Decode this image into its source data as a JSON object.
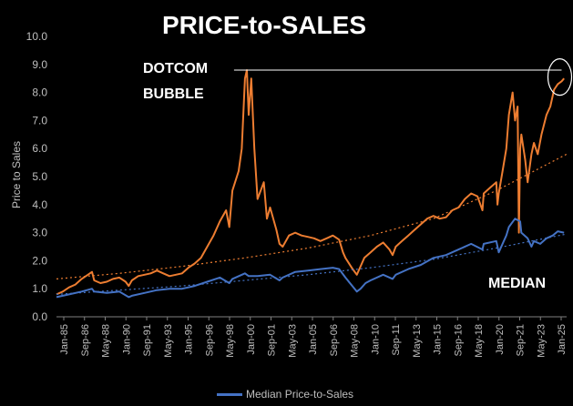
{
  "chart_data": {
    "type": "line",
    "title": "PRICE-to-SALES",
    "ylabel": "Price to Sales",
    "xlabel": "",
    "ylim": [
      0,
      10
    ],
    "yticks": [
      "0.0",
      "1.0",
      "2.0",
      "3.0",
      "4.0",
      "5.0",
      "6.0",
      "7.0",
      "8.0",
      "9.0",
      "10.0"
    ],
    "xticks": [
      "Jan-85",
      "Sep-86",
      "May-88",
      "Jan-90",
      "Sep-91",
      "May-93",
      "Jan-95",
      "Sep-96",
      "May-98",
      "Jan-00",
      "Sep-01",
      "May-03",
      "Jan-05",
      "Sep-06",
      "May-08",
      "Jan-10",
      "Sep-11",
      "May-13",
      "Jan-15",
      "Sep-16",
      "May-18",
      "Jan-20",
      "Sep-21",
      "May-23",
      "Jan-25"
    ],
    "xrange": [
      1985.0,
      2025.6
    ],
    "legend": "bottom",
    "grid": false,
    "annotations": [
      {
        "text_lines": [
          "DOTCOM",
          "BUBBLE"
        ]
      },
      {
        "text": "MEDIAN"
      }
    ],
    "series": [
      {
        "name": "",
        "color": "#ed7d31",
        "x": [
          1985.0,
          1985.5,
          1986.0,
          1986.5,
          1987.0,
          1987.5,
          1987.83,
          1988.0,
          1988.5,
          1989.0,
          1989.5,
          1990.0,
          1990.5,
          1990.75,
          1991.0,
          1991.5,
          1992.0,
          1992.5,
          1993.0,
          1993.5,
          1994.0,
          1994.5,
          1995.0,
          1995.5,
          1996.0,
          1996.5,
          1997.0,
          1997.5,
          1998.0,
          1998.5,
          1998.75,
          1999.0,
          1999.5,
          1999.75,
          2000.0,
          2000.15,
          2000.3,
          2000.5,
          2000.75,
          2001.0,
          2001.5,
          2001.75,
          2002.0,
          2002.5,
          2002.75,
          2003.0,
          2003.5,
          2004.0,
          2004.5,
          2005.0,
          2005.5,
          2006.0,
          2006.5,
          2007.0,
          2007.5,
          2007.8,
          2008.0,
          2008.5,
          2008.9,
          2009.2,
          2009.5,
          2010.0,
          2010.5,
          2011.0,
          2011.5,
          2011.75,
          2012.0,
          2012.5,
          2013.0,
          2013.5,
          2014.0,
          2014.5,
          2015.0,
          2015.5,
          2016.0,
          2016.5,
          2017.0,
          2017.5,
          2018.0,
          2018.5,
          2018.9,
          2019.0,
          2019.5,
          2020.0,
          2020.1,
          2020.2,
          2020.5,
          2020.8,
          2021.0,
          2021.3,
          2021.5,
          2021.7,
          2021.8,
          2021.9,
          2022.0,
          2022.3,
          2022.5,
          2022.8,
          2023.0,
          2023.3,
          2023.6,
          2024.0,
          2024.3,
          2024.6,
          2024.9,
          2025.2,
          2025.4
        ],
        "values": [
          0.8,
          0.9,
          1.05,
          1.15,
          1.35,
          1.5,
          1.6,
          1.3,
          1.2,
          1.25,
          1.35,
          1.4,
          1.25,
          1.1,
          1.3,
          1.45,
          1.5,
          1.55,
          1.65,
          1.55,
          1.45,
          1.5,
          1.55,
          1.75,
          1.9,
          2.1,
          2.5,
          2.9,
          3.4,
          3.8,
          3.2,
          4.5,
          5.2,
          6.0,
          8.5,
          8.8,
          7.2,
          8.5,
          6.0,
          4.2,
          4.8,
          3.5,
          3.9,
          3.1,
          2.6,
          2.5,
          2.9,
          3.0,
          2.9,
          2.85,
          2.8,
          2.7,
          2.8,
          2.9,
          2.75,
          2.3,
          2.1,
          1.75,
          1.5,
          1.8,
          2.1,
          2.3,
          2.5,
          2.65,
          2.4,
          2.2,
          2.5,
          2.7,
          2.9,
          3.1,
          3.3,
          3.5,
          3.6,
          3.5,
          3.55,
          3.8,
          3.9,
          4.2,
          4.4,
          4.3,
          3.8,
          4.4,
          4.6,
          4.8,
          4.0,
          4.4,
          5.2,
          6.0,
          7.2,
          8.0,
          7.0,
          7.5,
          3.0,
          6.0,
          6.5,
          5.6,
          4.8,
          5.8,
          6.2,
          5.8,
          6.5,
          7.2,
          7.5,
          8.1,
          8.3,
          8.4,
          8.5
        ]
      },
      {
        "name": "Median Price-to-Sales",
        "color": "#4472c4",
        "x": [
          1985.0,
          1986.0,
          1987.0,
          1987.83,
          1988.0,
          1989.0,
          1990.0,
          1990.75,
          1991.0,
          1992.0,
          1993.0,
          1994.0,
          1995.0,
          1996.0,
          1997.0,
          1998.0,
          1998.75,
          1999.0,
          2000.0,
          2000.3,
          2001.0,
          2002.0,
          2002.75,
          2003.0,
          2004.0,
          2005.0,
          2006.0,
          2007.0,
          2007.5,
          2008.0,
          2008.9,
          2009.2,
          2009.6,
          2010.0,
          2011.0,
          2011.75,
          2012.0,
          2013.0,
          2014.0,
          2015.0,
          2016.0,
          2017.0,
          2018.0,
          2018.9,
          2019.0,
          2020.0,
          2020.2,
          2020.8,
          2021.0,
          2021.5,
          2021.9,
          2022.0,
          2022.5,
          2022.8,
          2023.0,
          2023.5,
          2024.0,
          2024.5,
          2024.9,
          2025.4
        ],
        "values": [
          0.7,
          0.8,
          0.9,
          1.0,
          0.9,
          0.85,
          0.9,
          0.7,
          0.75,
          0.85,
          0.95,
          1.0,
          1.0,
          1.1,
          1.25,
          1.4,
          1.2,
          1.35,
          1.55,
          1.45,
          1.45,
          1.5,
          1.3,
          1.4,
          1.6,
          1.65,
          1.7,
          1.75,
          1.7,
          1.4,
          0.9,
          1.0,
          1.2,
          1.3,
          1.5,
          1.35,
          1.5,
          1.7,
          1.85,
          2.1,
          2.2,
          2.4,
          2.6,
          2.4,
          2.6,
          2.7,
          2.3,
          2.9,
          3.2,
          3.5,
          3.4,
          3.0,
          2.8,
          2.5,
          2.7,
          2.6,
          2.8,
          2.9,
          3.05,
          3.0
        ]
      },
      {
        "name": "",
        "color": "#ed7d31",
        "dashed": true,
        "x": [
          1985.0,
          1990.0,
          1995.0,
          2000.0,
          2005.0,
          2010.0,
          2015.0,
          2020.0,
          2025.6
        ],
        "values": [
          1.35,
          1.55,
          1.8,
          2.1,
          2.45,
          2.9,
          3.5,
          4.5,
          5.8
        ]
      },
      {
        "name": "",
        "color": "#4472c4",
        "dashed": true,
        "x": [
          1985.0,
          1990.0,
          1995.0,
          2000.0,
          2005.0,
          2010.0,
          2015.0,
          2020.0,
          2025.6
        ],
        "values": [
          0.8,
          0.95,
          1.1,
          1.3,
          1.5,
          1.75,
          2.05,
          2.45,
          2.95
        ]
      }
    ]
  }
}
